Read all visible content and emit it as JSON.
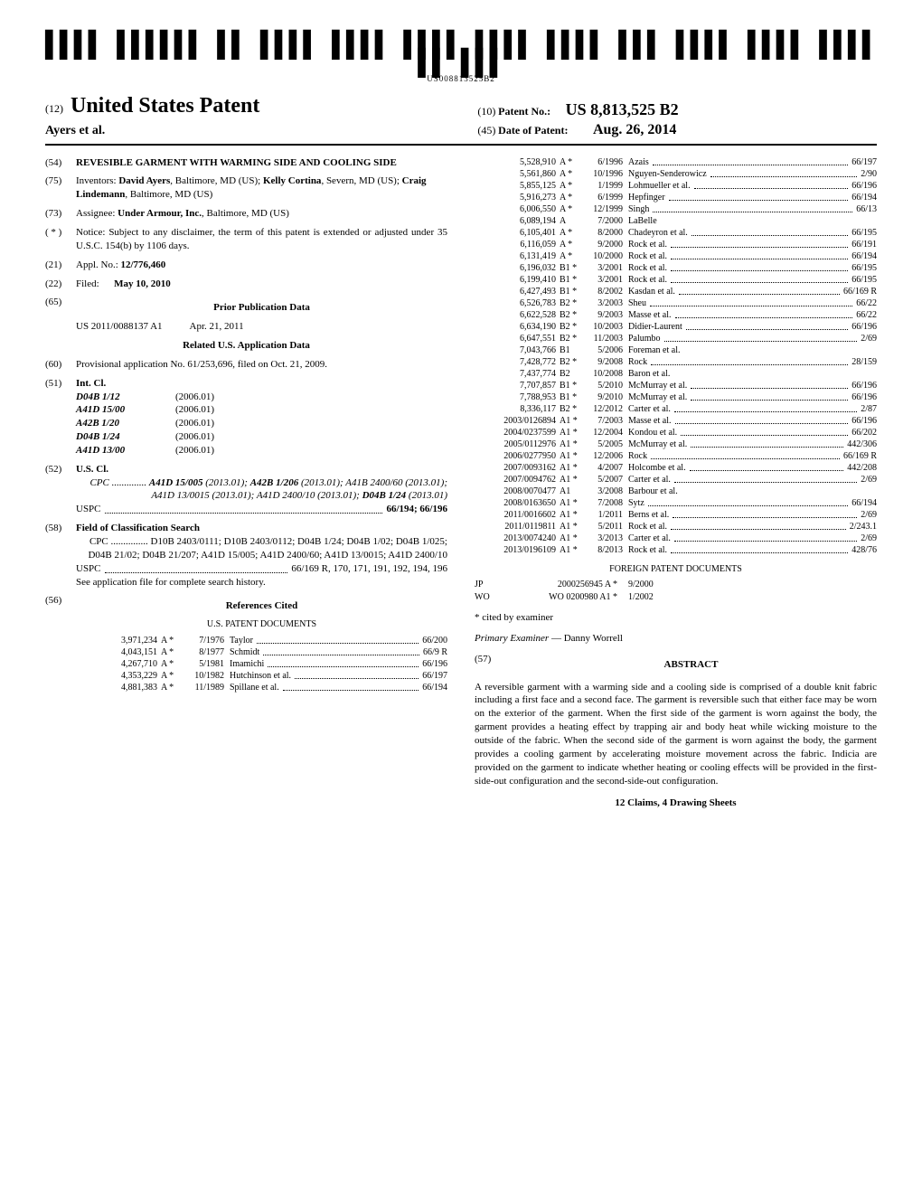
{
  "barcode_label": "US008813525B2",
  "header": {
    "prefix": "(12)",
    "title": "United States Patent",
    "authors": "Ayers et al.",
    "patno_prefix": "(10)",
    "patno_label": "Patent No.:",
    "patno_value": "US 8,813,525 B2",
    "dop_prefix": "(45)",
    "dop_label": "Date of Patent:",
    "dop_value": "Aug. 26, 2014"
  },
  "left": {
    "items": [
      {
        "num": "(54)",
        "body_bold": "REVESIBLE GARMENT WITH WARMING SIDE AND COOLING SIDE"
      },
      {
        "num": "(75)",
        "label": "Inventors:",
        "body": "David Ayers, Baltimore, MD (US); Kelly Cortina, Severn, MD (US); Craig Lindemann, Baltimore, MD (US)",
        "body_partial_bold": [
          "David Ayers",
          "Kelly Cortina",
          "Craig Lindemann"
        ]
      },
      {
        "num": "(73)",
        "label": "Assignee:",
        "body": "Under Armour, Inc., Baltimore, MD (US)",
        "body_partial_bold": [
          "Under Armour, Inc."
        ]
      },
      {
        "num": "( * )",
        "label": "Notice:",
        "body": "Subject to any disclaimer, the term of this patent is extended or adjusted under 35 U.S.C. 154(b) by 1106 days."
      },
      {
        "num": "(21)",
        "label": "Appl. No.:",
        "body_bold": "12/776,460"
      },
      {
        "num": "(22)",
        "label": "Filed:",
        "body_bold": "May 10, 2010"
      }
    ],
    "prior_pub": {
      "num": "(65)",
      "title": "Prior Publication Data",
      "pubno": "US 2011/0088137 A1",
      "pubdate": "Apr. 21, 2011"
    },
    "related": {
      "title": "Related U.S. Application Data",
      "num": "(60)",
      "body": "Provisional application No. 61/253,696, filed on Oct. 21, 2009."
    },
    "intcl": {
      "num": "(51)",
      "label": "Int. Cl.",
      "rows": [
        {
          "code": "D04B 1/12",
          "year": "(2006.01)"
        },
        {
          "code": "A41D 15/00",
          "year": "(2006.01)"
        },
        {
          "code": "A42B 1/20",
          "year": "(2006.01)"
        },
        {
          "code": "D04B 1/24",
          "year": "(2006.01)"
        },
        {
          "code": "A41D 13/00",
          "year": "(2006.01)"
        }
      ]
    },
    "uscl": {
      "num": "(52)",
      "label": "U.S. Cl.",
      "cpc": "CPC .............. A41D 15/005 (2013.01); A42B 1/206 (2013.01); A41B 2400/60 (2013.01); A41D 13/0015 (2013.01); A41D 2400/10 (2013.01); D04B 1/24 (2013.01)",
      "uspc_label": "USPC",
      "uspc_value": "66/194; 66/196"
    },
    "field": {
      "num": "(58)",
      "label": "Field of Classification Search",
      "cpc_label": "CPC",
      "cpc": "D10B 2403/0111; D10B 2403/0112; D04B 1/24; D04B 1/02; D04B 1/025; D04B 21/02; D04B 21/207; A41D 15/005; A41D 2400/60; A41D 13/0015; A41D 2400/10",
      "uspc_label": "USPC",
      "uspc": "66/169 R, 170, 171, 191, 192, 194, 196",
      "note": "See application file for complete search history."
    },
    "refs": {
      "num": "(56)",
      "title": "References Cited",
      "subtitle": "U.S. PATENT DOCUMENTS",
      "rows": [
        {
          "n": "3,971,234",
          "k": "A *",
          "d": "7/1976",
          "i": "Taylor",
          "c": "66/200"
        },
        {
          "n": "4,043,151",
          "k": "A *",
          "d": "8/1977",
          "i": "Schmidt",
          "c": "66/9 R"
        },
        {
          "n": "4,267,710",
          "k": "A *",
          "d": "5/1981",
          "i": "Imamichi",
          "c": "66/196"
        },
        {
          "n": "4,353,229",
          "k": "A *",
          "d": "10/1982",
          "i": "Hutchinson et al.",
          "c": "66/197"
        },
        {
          "n": "4,881,383",
          "k": "A *",
          "d": "11/1989",
          "i": "Spillane et al.",
          "c": "66/194"
        }
      ]
    }
  },
  "right": {
    "refs": [
      {
        "n": "5,528,910",
        "k": "A *",
        "d": "6/1996",
        "i": "Azais",
        "c": "66/197"
      },
      {
        "n": "5,561,860",
        "k": "A *",
        "d": "10/1996",
        "i": "Nguyen-Senderowicz",
        "c": "2/90"
      },
      {
        "n": "5,855,125",
        "k": "A *",
        "d": "1/1999",
        "i": "Lohmueller et al.",
        "c": "66/196"
      },
      {
        "n": "5,916,273",
        "k": "A *",
        "d": "6/1999",
        "i": "Hepfinger",
        "c": "66/194"
      },
      {
        "n": "6,006,550",
        "k": "A *",
        "d": "12/1999",
        "i": "Singh",
        "c": "66/13"
      },
      {
        "n": "6,089,194",
        "k": "A",
        "d": "7/2000",
        "i": "LaBelle",
        "c": ""
      },
      {
        "n": "6,105,401",
        "k": "A *",
        "d": "8/2000",
        "i": "Chadeyron et al.",
        "c": "66/195"
      },
      {
        "n": "6,116,059",
        "k": "A *",
        "d": "9/2000",
        "i": "Rock et al.",
        "c": "66/191"
      },
      {
        "n": "6,131,419",
        "k": "A *",
        "d": "10/2000",
        "i": "Rock et al.",
        "c": "66/194"
      },
      {
        "n": "6,196,032",
        "k": "B1 *",
        "d": "3/2001",
        "i": "Rock et al.",
        "c": "66/195"
      },
      {
        "n": "6,199,410",
        "k": "B1 *",
        "d": "3/2001",
        "i": "Rock et al.",
        "c": "66/195"
      },
      {
        "n": "6,427,493",
        "k": "B1 *",
        "d": "8/2002",
        "i": "Kasdan et al.",
        "c": "66/169 R"
      },
      {
        "n": "6,526,783",
        "k": "B2 *",
        "d": "3/2003",
        "i": "Sheu",
        "c": "66/22"
      },
      {
        "n": "6,622,528",
        "k": "B2 *",
        "d": "9/2003",
        "i": "Masse et al.",
        "c": "66/22"
      },
      {
        "n": "6,634,190",
        "k": "B2 *",
        "d": "10/2003",
        "i": "Didier-Laurent",
        "c": "66/196"
      },
      {
        "n": "6,647,551",
        "k": "B2 *",
        "d": "11/2003",
        "i": "Palumbo",
        "c": "2/69"
      },
      {
        "n": "7,043,766",
        "k": "B1",
        "d": "5/2006",
        "i": "Foreman et al.",
        "c": ""
      },
      {
        "n": "7,428,772",
        "k": "B2 *",
        "d": "9/2008",
        "i": "Rock",
        "c": "28/159"
      },
      {
        "n": "7,437,774",
        "k": "B2",
        "d": "10/2008",
        "i": "Baron et al.",
        "c": ""
      },
      {
        "n": "7,707,857",
        "k": "B1 *",
        "d": "5/2010",
        "i": "McMurray et al.",
        "c": "66/196"
      },
      {
        "n": "7,788,953",
        "k": "B1 *",
        "d": "9/2010",
        "i": "McMurray et al.",
        "c": "66/196"
      },
      {
        "n": "8,336,117",
        "k": "B2 *",
        "d": "12/2012",
        "i": "Carter et al.",
        "c": "2/87"
      },
      {
        "n": "2003/0126894",
        "k": "A1 *",
        "d": "7/2003",
        "i": "Masse et al.",
        "c": "66/196"
      },
      {
        "n": "2004/0237599",
        "k": "A1 *",
        "d": "12/2004",
        "i": "Kondou et al.",
        "c": "66/202"
      },
      {
        "n": "2005/0112976",
        "k": "A1 *",
        "d": "5/2005",
        "i": "McMurray et al.",
        "c": "442/306"
      },
      {
        "n": "2006/0277950",
        "k": "A1 *",
        "d": "12/2006",
        "i": "Rock",
        "c": "66/169 R"
      },
      {
        "n": "2007/0093162",
        "k": "A1 *",
        "d": "4/2007",
        "i": "Holcombe et al.",
        "c": "442/208"
      },
      {
        "n": "2007/0094762",
        "k": "A1 *",
        "d": "5/2007",
        "i": "Carter et al.",
        "c": "2/69"
      },
      {
        "n": "2008/0070477",
        "k": "A1",
        "d": "3/2008",
        "i": "Barbour et al.",
        "c": ""
      },
      {
        "n": "2008/0163650",
        "k": "A1 *",
        "d": "7/2008",
        "i": "Sytz",
        "c": "66/194"
      },
      {
        "n": "2011/0016602",
        "k": "A1 *",
        "d": "1/2011",
        "i": "Berns et al.",
        "c": "2/69"
      },
      {
        "n": "2011/0119811",
        "k": "A1 *",
        "d": "5/2011",
        "i": "Rock et al.",
        "c": "2/243.1"
      },
      {
        "n": "2013/0074240",
        "k": "A1 *",
        "d": "3/2013",
        "i": "Carter et al.",
        "c": "2/69"
      },
      {
        "n": "2013/0196109",
        "k": "A1 *",
        "d": "8/2013",
        "i": "Rock et al.",
        "c": "428/76"
      }
    ],
    "foreign": {
      "title": "FOREIGN PATENT DOCUMENTS",
      "rows": [
        {
          "cc": "JP",
          "n": "2000256945 A *",
          "d": "9/2000"
        },
        {
          "cc": "WO",
          "n": "WO 0200980 A1 *",
          "d": "1/2002"
        }
      ]
    },
    "cited_note": "* cited by examiner",
    "examiner_label": "Primary Examiner",
    "examiner_value": "— Danny Worrell",
    "abstract": {
      "num": "(57)",
      "title": "ABSTRACT",
      "body": "A reversible garment with a warming side and a cooling side is comprised of a double knit fabric including a first face and a second face. The garment is reversible such that either face may be worn on the exterior of the garment. When the first side of the garment is worn against the body, the garment provides a heating effect by trapping air and body heat while wicking moisture to the outside of the fabric. When the second side of the garment is worn against the body, the garment provides a cooling garment by accelerating moisture movement across the fabric. Indicia are provided on the garment to indicate whether heating or cooling effects will be provided in the first-side-out configuration and the second-side-out configuration."
    },
    "claims": "12 Claims, 4 Drawing Sheets"
  }
}
